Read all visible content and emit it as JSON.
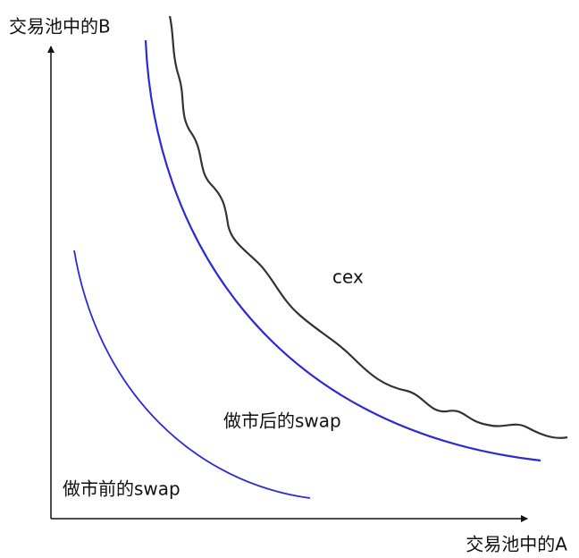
{
  "y_axis": {
    "label": "交易池中的B"
  },
  "x_axis": {
    "label": "交易池中的A"
  },
  "curves": [
    {
      "label": "cex"
    },
    {
      "label": "做市后的swap"
    },
    {
      "label": "做市前的swap"
    }
  ]
}
